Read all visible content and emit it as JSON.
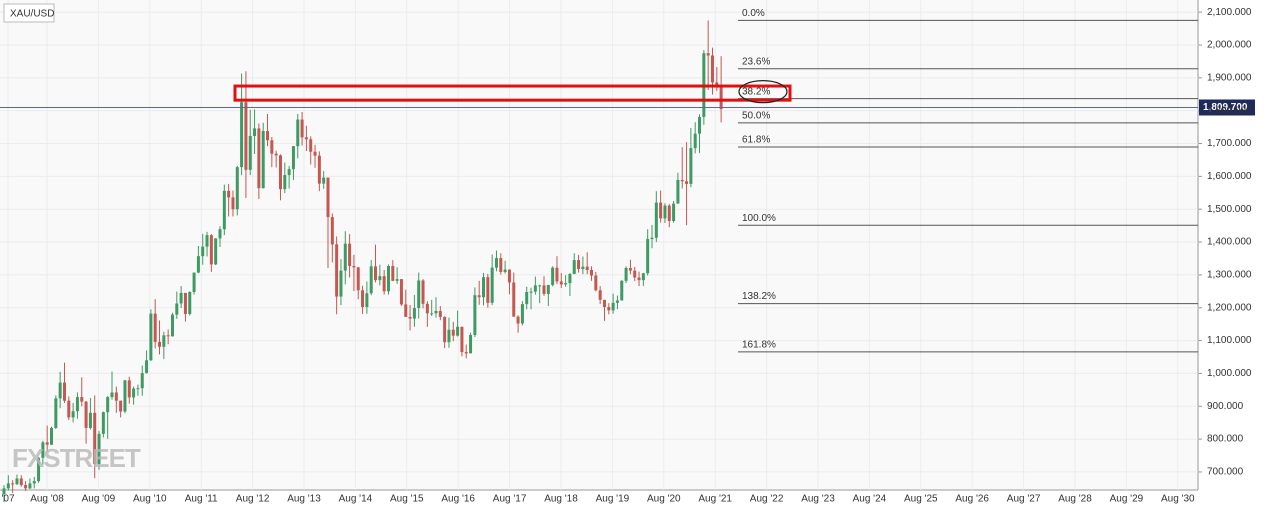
{
  "chart_data": {
    "type": "candlestick",
    "title": "XAU/USD",
    "watermark": "FXSTREET",
    "open": [
      632,
      650,
      665,
      663,
      680,
      660,
      650,
      665,
      672,
      743,
      790,
      783,
      834,
      924,
      972,
      917,
      866,
      885,
      928,
      914,
      834,
      880,
      724,
      816,
      882,
      928,
      942,
      917,
      884,
      979,
      927,
      954,
      955,
      1001,
      1040,
      1182,
      1096,
      1081,
      1116,
      1113,
      1179,
      1213,
      1245,
      1181,
      1248,
      1307,
      1357,
      1386,
      1421,
      1332,
      1411,
      1439,
      1556,
      1536,
      1500,
      1628,
      1826,
      1620,
      1723,
      1746,
      1564,
      1738,
      1710,
      1669,
      1664,
      1561,
      1604,
      1622,
      1692,
      1773,
      1719,
      1713,
      1675,
      1663,
      1578,
      1596,
      1476,
      1393,
      1234,
      1313,
      1395,
      1327,
      1323,
      1253,
      1202,
      1244,
      1326,
      1284,
      1296,
      1250,
      1327,
      1282,
      1287,
      1210,
      1172,
      1167,
      1199,
      1283,
      1212,
      1183,
      1183,
      1190,
      1172,
      1095,
      1133,
      1115,
      1142,
      1065,
      1061,
      1117,
      1238,
      1232,
      1293,
      1215,
      1322,
      1351,
      1309,
      1316,
      1277,
      1173,
      1152,
      1211,
      1248,
      1249,
      1268,
      1268,
      1242,
      1269,
      1322,
      1280,
      1271,
      1275,
      1303,
      1345,
      1318,
      1325,
      1315,
      1298,
      1253,
      1224,
      1202,
      1192,
      1215,
      1222,
      1282,
      1321,
      1313,
      1292,
      1284,
      1305,
      1409,
      1413,
      1520,
      1472,
      1511,
      1464,
      1517,
      1589,
      1585,
      1577,
      1686,
      1730,
      1781,
      1975,
      1968,
      1886,
      1879
    ],
    "high": [
      660,
      690,
      675,
      692,
      690,
      672,
      680,
      685,
      745,
      795,
      841,
      838,
      933,
      1005,
      1033,
      930,
      910,
      942,
      988,
      916,
      925,
      933,
      825,
      884,
      931,
      1006,
      960,
      917,
      980,
      990,
      960,
      966,
      1024,
      1070,
      1195,
      1226,
      1161,
      1127,
      1134,
      1185,
      1249,
      1266,
      1245,
      1250,
      1307,
      1388,
      1425,
      1431,
      1424,
      1412,
      1448,
      1575,
      1577,
      1557,
      1632,
      1913,
      1920,
      1803,
      1804,
      1761,
      1763,
      1790,
      1720,
      1678,
      1667,
      1642,
      1631,
      1692,
      1790,
      1796,
      1754,
      1722,
      1696,
      1676,
      1616,
      1597,
      1487,
      1417,
      1348,
      1433,
      1424,
      1361,
      1324,
      1267,
      1280,
      1345,
      1392,
      1331,
      1315,
      1332,
      1345,
      1323,
      1287,
      1255,
      1208,
      1239,
      1307,
      1287,
      1220,
      1224,
      1232,
      1205,
      1174,
      1170,
      1157,
      1191,
      1142,
      1088,
      1124,
      1262,
      1282,
      1306,
      1303,
      1362,
      1374,
      1366,
      1343,
      1317,
      1307,
      1177,
      1220,
      1264,
      1261,
      1295,
      1270,
      1296,
      1270,
      1326,
      1357,
      1306,
      1299,
      1305,
      1366,
      1361,
      1356,
      1369,
      1326,
      1309,
      1266,
      1224,
      1214,
      1243,
      1237,
      1284,
      1326,
      1346,
      1324,
      1310,
      1306,
      1439,
      1452,
      1555,
      1557,
      1518,
      1516,
      1525,
      1611,
      1689,
      1704,
      1747,
      1765,
      1789,
      1984,
      2075,
      1992,
      1933,
      1966
    ],
    "low": [
      608,
      643,
      636,
      660,
      655,
      642,
      648,
      650,
      667,
      722,
      760,
      782,
      831,
      894,
      910,
      858,
      851,
      862,
      900,
      786,
      829,
      681,
      707,
      805,
      801,
      920,
      880,
      866,
      879,
      908,
      905,
      932,
      932,
      1000,
      1038,
      1076,
      1058,
      1044,
      1089,
      1112,
      1166,
      1199,
      1158,
      1176,
      1240,
      1305,
      1331,
      1356,
      1309,
      1330,
      1385,
      1421,
      1478,
      1478,
      1481,
      1604,
      1534,
      1604,
      1668,
      1531,
      1563,
      1692,
      1628,
      1627,
      1527,
      1549,
      1563,
      1589,
      1655,
      1694,
      1677,
      1636,
      1626,
      1555,
      1562,
      1321,
      1338,
      1180,
      1208,
      1271,
      1292,
      1251,
      1226,
      1181,
      1182,
      1238,
      1277,
      1268,
      1240,
      1240,
      1281,
      1273,
      1206,
      1183,
      1131,
      1142,
      1167,
      1198,
      1142,
      1175,
      1170,
      1162,
      1077,
      1078,
      1098,
      1112,
      1052,
      1046,
      1061,
      1111,
      1209,
      1207,
      1200,
      1208,
      1311,
      1301,
      1304,
      1241,
      1172,
      1124,
      1146,
      1195,
      1195,
      1240,
      1214,
      1236,
      1205,
      1265,
      1272,
      1260,
      1264,
      1236,
      1302,
      1307,
      1302,
      1302,
      1282,
      1250,
      1211,
      1160,
      1180,
      1182,
      1196,
      1222,
      1275,
      1302,
      1281,
      1266,
      1266,
      1298,
      1381,
      1400,
      1459,
      1458,
      1445,
      1459,
      1517,
      1563,
      1451,
      1567,
      1670,
      1671,
      1757,
      1863,
      1849,
      1860,
      1764
    ],
    "close": [
      650,
      665,
      663,
      680,
      660,
      650,
      665,
      672,
      743,
      790,
      783,
      834,
      924,
      972,
      917,
      866,
      885,
      928,
      914,
      834,
      880,
      724,
      816,
      882,
      928,
      942,
      917,
      884,
      979,
      927,
      954,
      955,
      1001,
      1040,
      1182,
      1096,
      1081,
      1116,
      1113,
      1179,
      1213,
      1245,
      1181,
      1248,
      1307,
      1357,
      1386,
      1421,
      1332,
      1411,
      1439,
      1556,
      1536,
      1500,
      1628,
      1826,
      1620,
      1723,
      1746,
      1564,
      1738,
      1710,
      1669,
      1664,
      1561,
      1604,
      1622,
      1692,
      1773,
      1719,
      1713,
      1675,
      1663,
      1578,
      1596,
      1476,
      1393,
      1234,
      1313,
      1395,
      1327,
      1323,
      1253,
      1202,
      1244,
      1326,
      1284,
      1296,
      1250,
      1327,
      1282,
      1287,
      1210,
      1172,
      1167,
      1199,
      1283,
      1212,
      1183,
      1183,
      1190,
      1172,
      1095,
      1133,
      1115,
      1142,
      1065,
      1061,
      1117,
      1238,
      1232,
      1293,
      1215,
      1322,
      1351,
      1309,
      1316,
      1277,
      1173,
      1152,
      1211,
      1248,
      1249,
      1268,
      1268,
      1242,
      1269,
      1322,
      1280,
      1271,
      1275,
      1303,
      1345,
      1318,
      1325,
      1315,
      1298,
      1253,
      1224,
      1202,
      1192,
      1215,
      1222,
      1282,
      1321,
      1313,
      1292,
      1284,
      1305,
      1409,
      1413,
      1520,
      1472,
      1511,
      1464,
      1517,
      1589,
      1585,
      1577,
      1686,
      1730,
      1781,
      1975,
      1968,
      1886,
      1879,
      1805
    ],
    "up_color": "#3d9a62",
    "down_color": "#c4574f",
    "ylim": [
      645,
      2137
    ],
    "yticks": [
      {
        "value": 700,
        "label": "700.000"
      },
      {
        "value": 800,
        "label": "800.000"
      },
      {
        "value": 900,
        "label": "900.000"
      },
      {
        "value": 1000,
        "label": "1,000.000"
      },
      {
        "value": 1100,
        "label": "1,100.000"
      },
      {
        "value": 1200,
        "label": "1,200.000"
      },
      {
        "value": 1300,
        "label": "1,300.000"
      },
      {
        "value": 1400,
        "label": "1,400.000"
      },
      {
        "value": 1500,
        "label": "1,500.000"
      },
      {
        "value": 1600,
        "label": "1,600.000"
      },
      {
        "value": 1700,
        "label": "1,700.000"
      },
      {
        "value": 1800,
        "label": "1,800.000"
      },
      {
        "value": 1900,
        "label": "1,900.000"
      },
      {
        "value": 2000,
        "label": "2,000.000"
      },
      {
        "value": 2100,
        "label": "2,100.000"
      }
    ],
    "x_labels": [
      "'07",
      "Aug '08",
      "Aug '09",
      "Aug '10",
      "Aug '11",
      "Aug '12",
      "Aug '13",
      "Aug '14",
      "Aug '15",
      "Aug '16",
      "Aug '17",
      "Aug '18",
      "Aug '19",
      "Aug '20",
      "Aug '21",
      "Aug '22",
      "Aug '23",
      "Aug '24",
      "Aug '25",
      "Aug '26",
      "Aug '27",
      "Aug '28",
      "Aug '29",
      "Aug '30"
    ],
    "grid": true,
    "current_price": {
      "value": 1809.7,
      "label": "1,809.700"
    },
    "fib_levels": [
      {
        "label": "0.0%",
        "price": 2075
      },
      {
        "label": "23.6%",
        "price": 1927.7
      },
      {
        "label": "38.2%",
        "price": 1836.6
      },
      {
        "label": "50.0%",
        "price": 1763
      },
      {
        "label": "61.8%",
        "price": 1689.4
      },
      {
        "label": "100.0%",
        "price": 1451
      },
      {
        "label": "138.2%",
        "price": 1212.6
      },
      {
        "label": "161.8%",
        "price": 1065.4
      }
    ],
    "zone": {
      "low": 1832,
      "high": 1875
    }
  }
}
